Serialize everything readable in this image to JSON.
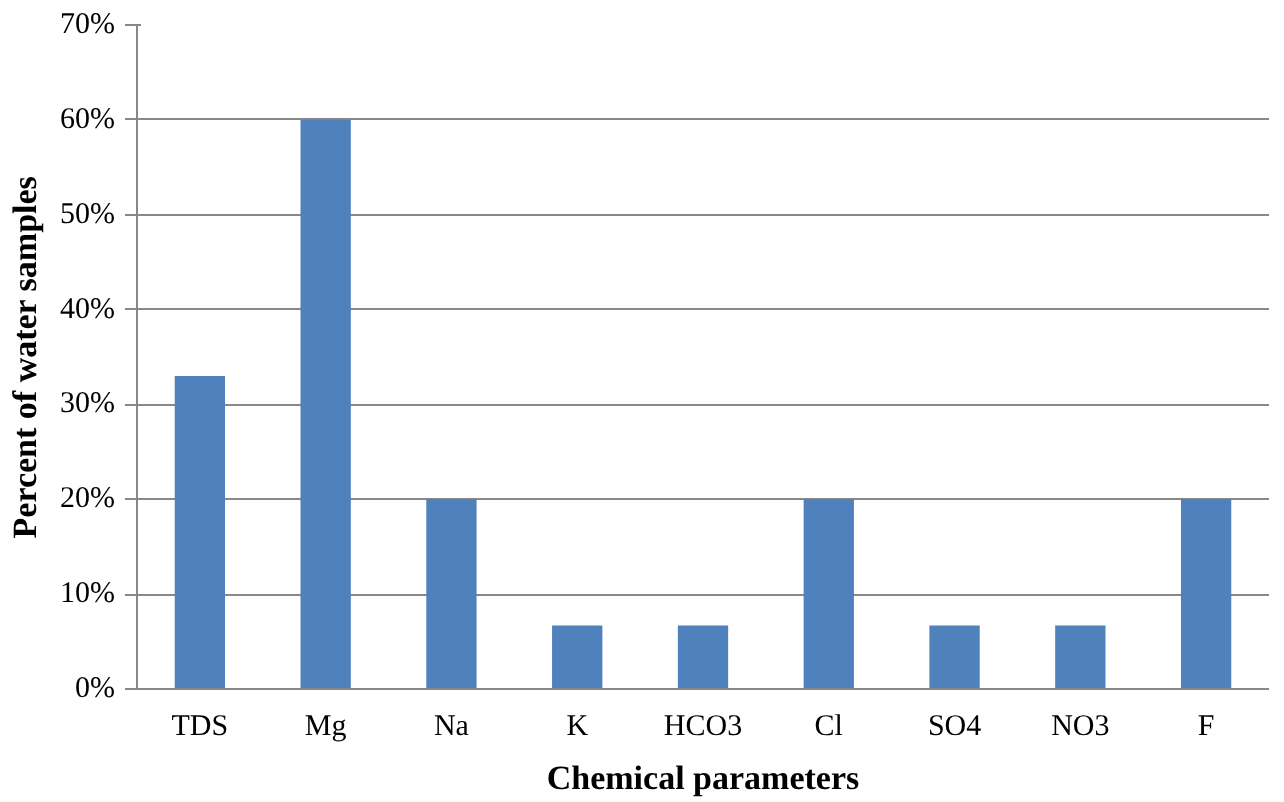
{
  "chart_data": {
    "type": "bar",
    "xlabel": "Chemical parameters",
    "ylabel": "Percent of water samples",
    "categories": [
      "TDS",
      "Mg",
      "Na",
      "K",
      "HCO3",
      "Cl",
      "SO4",
      "NO3",
      "F"
    ],
    "values": [
      33,
      60,
      20,
      6.7,
      6.7,
      20,
      6.7,
      6.7,
      20
    ],
    "color": "#4f81bd",
    "ylim": [
      0,
      70
    ],
    "yticks": [
      {
        "value": 0,
        "label": "0%"
      },
      {
        "value": 10,
        "label": "10%"
      },
      {
        "value": 20,
        "label": "20%"
      },
      {
        "value": 30,
        "label": "30%"
      },
      {
        "value": 40,
        "label": "40%"
      },
      {
        "value": 50,
        "label": "50%"
      },
      {
        "value": 60,
        "label": "60%"
      },
      {
        "value": 70,
        "label": "70%"
      }
    ],
    "grid": "y"
  }
}
